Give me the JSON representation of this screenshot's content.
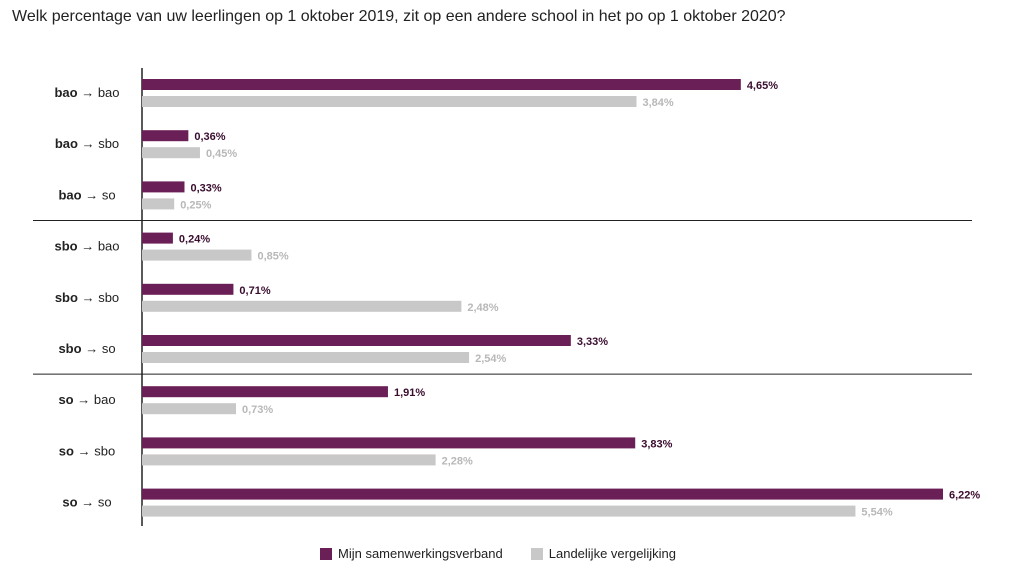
{
  "question": "Welk percentage van uw leerlingen op 1 oktober 2019, zit op een andere school in het po op 1 oktober 2020?",
  "chart_data": {
    "type": "bar",
    "orientation": "horizontal",
    "categories": [
      {
        "from": "bao",
        "to": "bao"
      },
      {
        "from": "bao",
        "to": "sbo"
      },
      {
        "from": "bao",
        "to": "so"
      },
      {
        "from": "sbo",
        "to": "bao"
      },
      {
        "from": "sbo",
        "to": "sbo"
      },
      {
        "from": "sbo",
        "to": "so"
      },
      {
        "from": "so",
        "to": "bao"
      },
      {
        "from": "so",
        "to": "sbo"
      },
      {
        "from": "so",
        "to": "so"
      }
    ],
    "arrow": "→",
    "groups": [
      3,
      3,
      3
    ],
    "series": [
      {
        "name": "Mijn samenwerkingsverband",
        "color": "#6b1f57",
        "values": [
          4.65,
          0.36,
          0.33,
          0.24,
          0.71,
          3.33,
          1.91,
          3.83,
          6.22
        ],
        "labels": [
          "4,65%",
          "0,36%",
          "0,33%",
          "0,24%",
          "0,71%",
          "3,33%",
          "1,91%",
          "3,83%",
          "6,22%"
        ]
      },
      {
        "name": "Landelijke vergelijking",
        "color": "#c8c8c8",
        "values": [
          3.84,
          0.45,
          0.25,
          0.85,
          2.48,
          2.54,
          0.73,
          2.28,
          5.54
        ],
        "labels": [
          "3,84%",
          "0,45%",
          "0,25%",
          "0,85%",
          "2,48%",
          "2,54%",
          "0,73%",
          "2,28%",
          "5,54%"
        ]
      }
    ],
    "xlim": [
      0,
      6.22
    ],
    "grid": false,
    "legend_position": "bottom-center",
    "label_colors": {
      "primary": "#3a0d2e",
      "secondary": "#b8b8b8"
    }
  }
}
